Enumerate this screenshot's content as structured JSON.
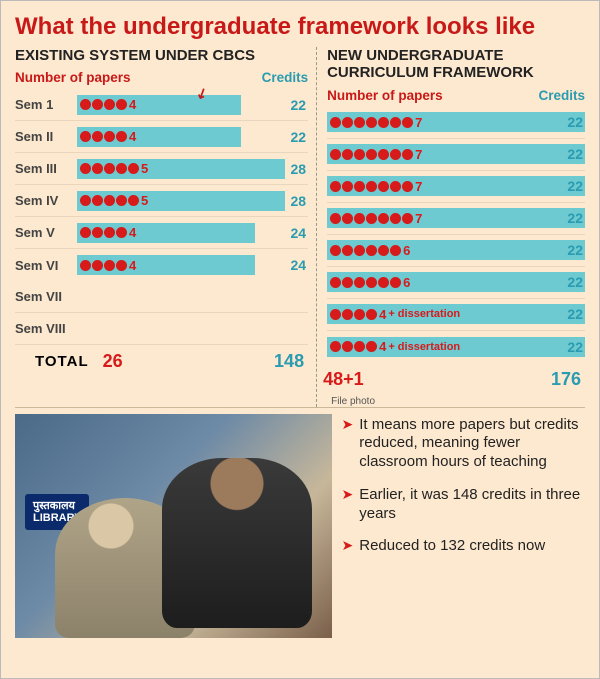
{
  "title": "What the undergraduate framework looks like",
  "colors": {
    "accent_red": "#d71a1a",
    "accent_teal": "#2a9bb0",
    "bar_fill": "#6ecad1",
    "card_bg": "#fde9cf"
  },
  "left": {
    "header": "EXISTING SYSTEM UNDER CBCS",
    "sub_np": "Number of papers",
    "sub_cr": "Credits",
    "max_credits": 28,
    "rows": [
      {
        "sem": "Sem 1",
        "papers": 4,
        "credits": 22
      },
      {
        "sem": "Sem II",
        "papers": 4,
        "credits": 22
      },
      {
        "sem": "Sem III",
        "papers": 5,
        "credits": 28
      },
      {
        "sem": "Sem IV",
        "papers": 5,
        "credits": 28
      },
      {
        "sem": "Sem V",
        "papers": 4,
        "credits": 24
      },
      {
        "sem": "Sem VI",
        "papers": 4,
        "credits": 24
      }
    ],
    "total_label": "TOTAL",
    "total_papers": "26",
    "total_credits": "148"
  },
  "right": {
    "header": "NEW UNDERGRADUATE CURRICULUM FRAMEWORK",
    "sub_np": "Number of papers",
    "sub_cr": "Credits",
    "max_credits": 22,
    "rows": [
      {
        "sem": "",
        "papers": 7,
        "extra": "",
        "credits": 22
      },
      {
        "sem": "",
        "papers": 7,
        "extra": "",
        "credits": 22
      },
      {
        "sem": "",
        "papers": 7,
        "extra": "",
        "credits": 22
      },
      {
        "sem": "",
        "papers": 7,
        "extra": "",
        "credits": 22
      },
      {
        "sem": "",
        "papers": 6,
        "extra": "",
        "credits": 22
      },
      {
        "sem": "",
        "papers": 6,
        "extra": "",
        "credits": 22
      },
      {
        "sem": "Sem VII",
        "papers": 4,
        "extra": "+ dissertation",
        "credits": 22
      },
      {
        "sem": "Sem VIII",
        "papers": 4,
        "extra": "+ dissertation",
        "credits": 22
      }
    ],
    "total_papers": "48+1",
    "total_credits": "176",
    "file_photo": "File photo"
  },
  "bullets": [
    "It means more papers but credits reduced, meaning fewer classroom hours of teaching",
    "Earlier, it was 148 credits in three years",
    "Reduced to 132 credits now"
  ],
  "photo_sign": "पुस्तकालय\nLIBRARY"
}
